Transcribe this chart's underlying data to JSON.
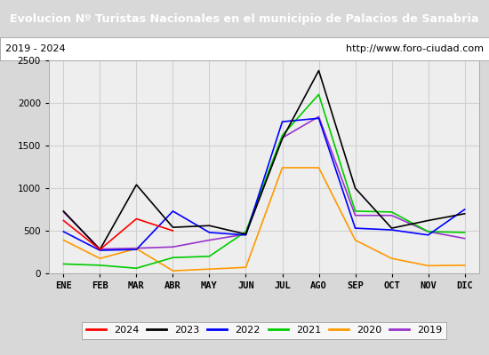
{
  "title": "Evolucion Nº Turistas Nacionales en el municipio de Palacios de Sanabria",
  "subtitle_left": "2019 - 2024",
  "subtitle_right": "http://www.foro-ciudad.com",
  "title_bg_color": "#5b8fc9",
  "title_text_color": "#ffffff",
  "months": [
    "ENE",
    "FEB",
    "MAR",
    "ABR",
    "MAY",
    "JUN",
    "JUL",
    "AGO",
    "SEP",
    "OCT",
    "NOV",
    "DIC"
  ],
  "series": {
    "2024": {
      "color": "#ff0000",
      "data": [
        620,
        280,
        640,
        500,
        null,
        null,
        null,
        null,
        null,
        null,
        null,
        null
      ]
    },
    "2023": {
      "color": "#000000",
      "data": [
        730,
        280,
        1040,
        540,
        560,
        460,
        1580,
        2380,
        1000,
        530,
        620,
        700
      ]
    },
    "2022": {
      "color": "#0000ff",
      "data": [
        490,
        270,
        280,
        730,
        480,
        450,
        1780,
        1820,
        530,
        510,
        450,
        750
      ]
    },
    "2021": {
      "color": "#00cc00",
      "data": [
        110,
        95,
        60,
        185,
        200,
        490,
        1620,
        2100,
        730,
        720,
        490,
        480
      ]
    },
    "2020": {
      "color": "#ff9900",
      "data": [
        390,
        175,
        290,
        30,
        50,
        70,
        1240,
        1240,
        390,
        175,
        90,
        95
      ]
    },
    "2019": {
      "color": "#9933cc",
      "data": [
        720,
        285,
        295,
        310,
        390,
        460,
        1590,
        1840,
        680,
        680,
        490,
        410
      ]
    }
  },
  "ylim": [
    0,
    2500
  ],
  "yticks": [
    0,
    500,
    1000,
    1500,
    2000,
    2500
  ],
  "legend_order": [
    "2024",
    "2023",
    "2022",
    "2021",
    "2020",
    "2019"
  ],
  "grid_color": "#d0d0d0",
  "plot_bg_color": "#eeeeee",
  "fig_bg_color": "#d8d8d8"
}
